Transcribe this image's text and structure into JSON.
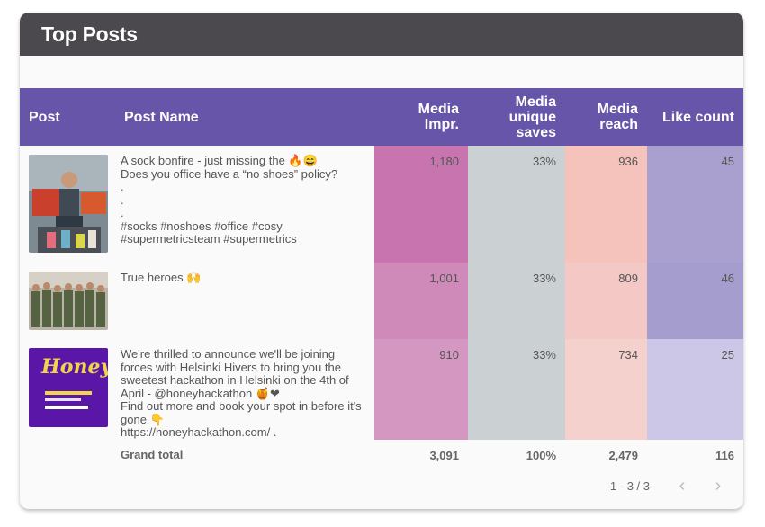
{
  "header": {
    "title": "Top Posts"
  },
  "table": {
    "columns": {
      "post": "Post",
      "post_name": "Post Name",
      "media_impr": "Media Impr.",
      "media_unique_saves": "Media unique saves",
      "media_reach": "Media reach",
      "like_count": "Like count"
    },
    "rows": [
      {
        "thumb_icon": "office-people-photo",
        "name": "A sock bonfire - just missing the 🔥😄\nDoes you office have a “no shoes” policy?\n.\n.\n.\n#socks #noshoes #office #cosy\n#supermetricsteam #supermetrics",
        "media_impr": "1,180",
        "media_unique_saves": "33%",
        "media_reach": "936",
        "like_count": "45",
        "colors": {
          "impr": "#c875af",
          "saves": "#cbd0d3",
          "reach": "#f5c2bc",
          "likes": "#a9a0d0"
        }
      },
      {
        "thumb_icon": "group-soldiers-photo",
        "name": "True heroes 🙌",
        "media_impr": "1,001",
        "media_unique_saves": "33%",
        "media_reach": "809",
        "like_count": "46",
        "colors": {
          "impr": "#d08ab9",
          "saves": "#cbd0d3",
          "reach": "#f4c9c5",
          "likes": "#a69dcf"
        }
      },
      {
        "thumb_icon": "honey-hackathon-logo",
        "thumb_text": "Honey",
        "name": "We're thrilled to announce we'll be joining forces with Helsinki Hivers to bring you the sweetest hackathon in Helsinki on the 4th of April - @honeyhackathon 🍯❤\nFind out more and book your spot in before it's gone 👇\nhttps://honeyhackathon.com/ .",
        "media_impr": "910",
        "media_unique_saves": "33%",
        "media_reach": "734",
        "like_count": "25",
        "colors": {
          "impr": "#d497c1",
          "saves": "#cbd0d3",
          "reach": "#f5d1cd",
          "likes": "#ccc7e6"
        }
      }
    ],
    "total": {
      "label": "Grand total",
      "media_impr": "3,091",
      "media_unique_saves": "100%",
      "media_reach": "2,479",
      "like_count": "116"
    }
  },
  "pagination": {
    "range": "1 - 3 / 3",
    "prev_icon": "chevron-left-icon",
    "next_icon": "chevron-right-icon"
  }
}
